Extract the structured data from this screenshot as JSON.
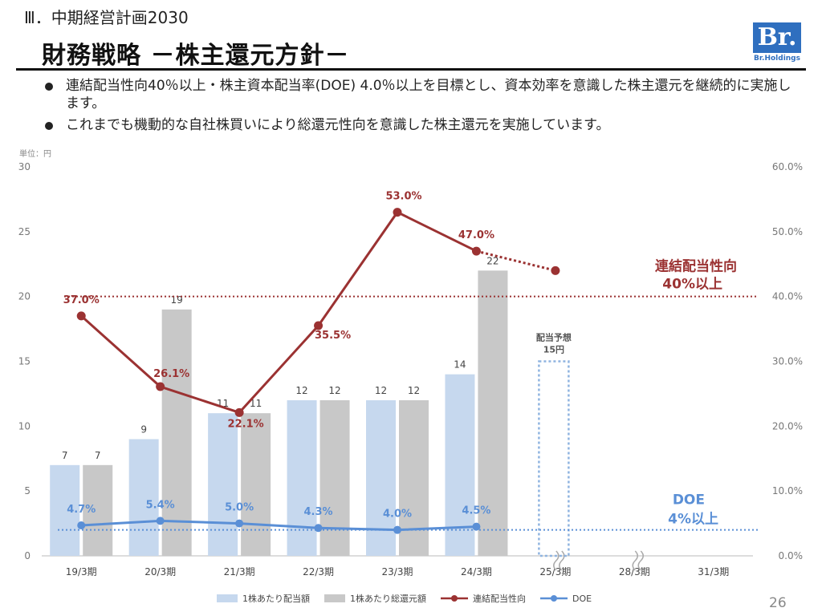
{
  "header": {
    "section": "Ⅲ．中期経営計画2030",
    "title": "財務戦略 －株主還元方針－",
    "logo_mark": "Br.",
    "logo_text": "Br.Holdings"
  },
  "bullets": [
    "連結配当性向40％以上・株主資本配当率(DOE) 4.0％以上を目標とし、資本効率を意識した株主還元を継続的に実施します。",
    "これまでも機動的な自社株買いにより総還元性向を意識した株主還元を実施しています。"
  ],
  "unit_label": "単位：円",
  "page_number": "26",
  "colors": {
    "dividend_bar": "#c6d8ee",
    "total_bar": "#c8c8c8",
    "payout_line": "#9b3232",
    "doe_line": "#5a8fd6",
    "forecast_border": "#8fb4e0"
  },
  "chart_data": {
    "type": "bar",
    "categories": [
      "19/3期",
      "20/3期",
      "21/3期",
      "22/3期",
      "23/3期",
      "24/3期",
      "25/3期",
      "28/3期",
      "31/3期"
    ],
    "y_left": {
      "ticks": [
        "0",
        "5",
        "10",
        "15",
        "20",
        "25",
        "30"
      ],
      "ylim": [
        0,
        30
      ]
    },
    "y_right": {
      "ticks": [
        "0.0%",
        "10.0%",
        "20.0%",
        "30.0%",
        "40.0%",
        "50.0%",
        "60.0%"
      ],
      "ylim": [
        0,
        60
      ]
    },
    "series": [
      {
        "name": "1株あたり配当額",
        "kind": "bar",
        "values": [
          7,
          9,
          11,
          12,
          12,
          14,
          null,
          null,
          null
        ],
        "labels": [
          "7",
          "9",
          "11",
          "12",
          "12",
          "14",
          "",
          "",
          ""
        ]
      },
      {
        "name": "1株あたり総還元額",
        "kind": "bar",
        "values": [
          7,
          19,
          11,
          12,
          12,
          22,
          null,
          null,
          null
        ],
        "labels": [
          "7",
          "19",
          "11",
          "12",
          "12",
          "22",
          "",
          "",
          ""
        ]
      },
      {
        "name": "連結配当性向",
        "kind": "line",
        "axis": "right",
        "values": [
          37.0,
          26.1,
          22.1,
          35.5,
          53.0,
          47.0,
          44.0,
          null,
          null
        ],
        "labels": [
          "37.0%",
          "26.1%",
          "22.1%",
          "35.5%",
          "53.0%",
          "47.0%",
          "",
          "",
          ""
        ]
      },
      {
        "name": "DOE",
        "kind": "line",
        "axis": "right",
        "values": [
          4.7,
          5.4,
          5.0,
          4.3,
          4.0,
          4.5,
          null,
          null,
          null
        ],
        "labels": [
          "4.7%",
          "5.4%",
          "5.0%",
          "4.3%",
          "4.0%",
          "4.5%",
          "",
          "",
          ""
        ]
      }
    ],
    "forecast": {
      "category": "25/3期",
      "label_1": "配当予想",
      "label_2": "15円",
      "value": 15
    },
    "targets": [
      {
        "name": "payout",
        "value": 40.0,
        "label_1": "連結配当性向",
        "label_2": "40%以上"
      },
      {
        "name": "doe",
        "value": 4.0,
        "label_1": "DOE",
        "label_2": "4%以上"
      }
    ],
    "grid": false,
    "legend_position": "bottom"
  }
}
